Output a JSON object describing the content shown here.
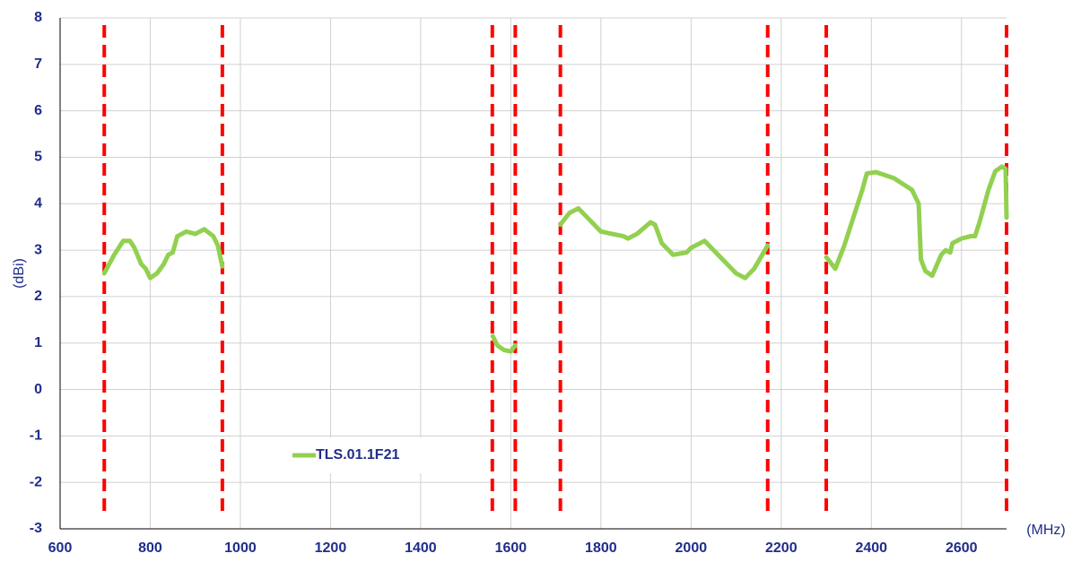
{
  "chart_data": {
    "type": "line",
    "x_label": "(MHz)",
    "y_label": "(dBi)",
    "xlim": [
      600,
      2700
    ],
    "xticks": [
      600,
      800,
      1000,
      1200,
      1400,
      1600,
      1800,
      2000,
      2200,
      2400,
      2600
    ],
    "ylim": [
      -3,
      8
    ],
    "yticks": [
      -3,
      -2,
      -1,
      0,
      1,
      2,
      3,
      4,
      5,
      6,
      7,
      8
    ],
    "grid": true,
    "legend": "lower-left",
    "vlines": {
      "color": "#ff0000",
      "x": [
        698,
        960,
        1559,
        1610,
        1710,
        2170,
        2300,
        2700
      ]
    },
    "series": [
      {
        "name": "TLS.01.1F21",
        "color": "#92d050",
        "x": [
          698,
          720,
          740,
          755,
          765,
          780,
          790,
          800,
          815,
          830,
          840,
          850,
          860,
          880,
          900,
          920,
          940,
          950,
          960,
          null,
          1560,
          1570,
          1585,
          1600,
          1610,
          null,
          1710,
          1730,
          1750,
          1770,
          1800,
          1850,
          1860,
          1880,
          1910,
          1920,
          1935,
          1960,
          1990,
          2000,
          2020,
          2030,
          2060,
          2100,
          2120,
          2140,
          2170,
          null,
          2300,
          2320,
          2340,
          2370,
          2380,
          2390,
          2410,
          2450,
          2490,
          2505,
          2510,
          2520,
          2535,
          2555,
          2565,
          2575,
          2580,
          2600,
          2620,
          2630,
          2640,
          2660,
          2675,
          2690,
          2698,
          2700
        ],
        "values": [
          2.5,
          2.9,
          3.2,
          3.2,
          3.05,
          2.7,
          2.6,
          2.4,
          2.5,
          2.7,
          2.9,
          2.95,
          3.3,
          3.4,
          3.35,
          3.45,
          3.3,
          3.1,
          2.65,
          null,
          1.15,
          0.95,
          0.85,
          0.82,
          0.95,
          null,
          3.55,
          3.8,
          3.9,
          3.7,
          3.4,
          3.3,
          3.25,
          3.35,
          3.6,
          3.55,
          3.15,
          2.9,
          2.95,
          3.05,
          3.15,
          3.2,
          2.9,
          2.5,
          2.4,
          2.6,
          3.1,
          null,
          2.85,
          2.6,
          3.1,
          4.0,
          4.3,
          4.65,
          4.68,
          4.55,
          4.3,
          4.0,
          2.8,
          2.55,
          2.45,
          2.9,
          3.0,
          2.95,
          3.15,
          3.25,
          3.3,
          3.3,
          3.6,
          4.3,
          4.7,
          4.8,
          4.75,
          3.7
        ]
      }
    ]
  }
}
